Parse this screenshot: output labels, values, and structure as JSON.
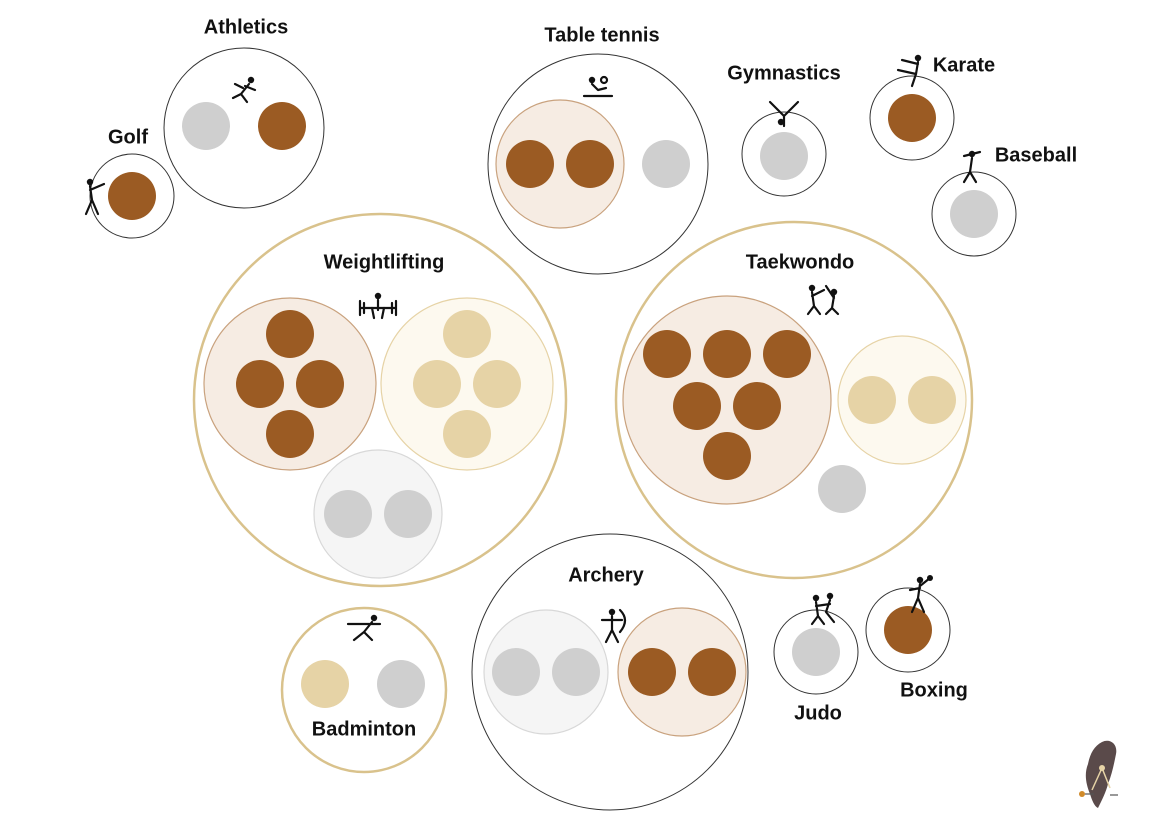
{
  "colors": {
    "bronze": "#9b5b23",
    "silver": "#cfcfcf",
    "gold": "#e6d3a6",
    "outline": "#333333",
    "gold_ring": "#d9c28c"
  },
  "chart_data": {
    "type": "packed-bubble",
    "title": "",
    "sports": [
      {
        "name": "Athletics",
        "icon": "athletics-icon",
        "gold": 0,
        "silver": 1,
        "bronze": 1
      },
      {
        "name": "Golf",
        "icon": "golf-icon",
        "gold": 0,
        "silver": 0,
        "bronze": 1
      },
      {
        "name": "Table tennis",
        "icon": "table-tennis-icon",
        "gold": 0,
        "silver": 1,
        "bronze": 2
      },
      {
        "name": "Gymnastics",
        "icon": "gymnastics-icon",
        "gold": 0,
        "silver": 1,
        "bronze": 0
      },
      {
        "name": "Karate",
        "icon": "karate-icon",
        "gold": 0,
        "silver": 0,
        "bronze": 1
      },
      {
        "name": "Baseball",
        "icon": "baseball-icon",
        "gold": 0,
        "silver": 1,
        "bronze": 0
      },
      {
        "name": "Weightlifting",
        "icon": "weightlifting-icon",
        "gold": 4,
        "silver": 2,
        "bronze": 4
      },
      {
        "name": "Taekwondo",
        "icon": "taekwondo-icon",
        "gold": 2,
        "silver": 1,
        "bronze": 6
      },
      {
        "name": "Archery",
        "icon": "archery-icon",
        "gold": 0,
        "silver": 2,
        "bronze": 2
      },
      {
        "name": "Badminton",
        "icon": "badminton-icon",
        "gold": 1,
        "silver": 1,
        "bronze": 0
      },
      {
        "name": "Judo",
        "icon": "judo-icon",
        "gold": 0,
        "silver": 1,
        "bronze": 0
      },
      {
        "name": "Boxing",
        "icon": "boxing-icon",
        "gold": 0,
        "silver": 0,
        "bronze": 1
      }
    ],
    "logo": "taiwan-map-logo"
  }
}
